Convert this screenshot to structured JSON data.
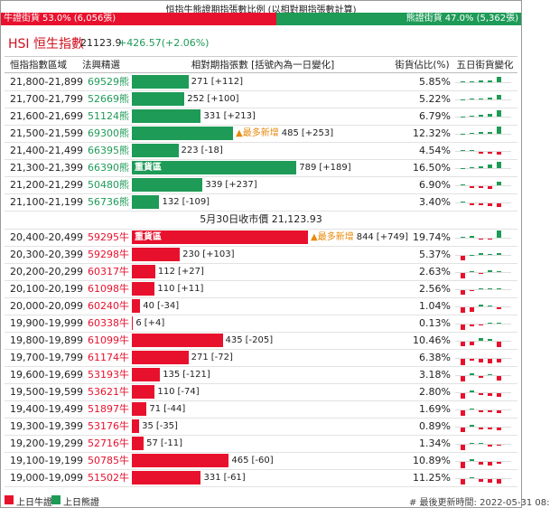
{
  "top": {
    "title": "恒指牛熊證期指張數比例 (以相對期指張數計算)",
    "bull": {
      "label": "牛證街貨",
      "pct": 53.0,
      "pct_label": "53.0%",
      "count": "(6,056張)"
    },
    "bear": {
      "label": "熊證街貨",
      "pct": 47.0,
      "pct_label": "47.0%",
      "count": "(5,362張)"
    }
  },
  "header": {
    "name": "HSI 恒生指數",
    "price": "21123.9",
    "change": "+426.57(+2.06%)"
  },
  "table": {
    "columns": [
      "恒指指數區域",
      "法興精選",
      "相對期指張數 [括號內為一日變化]",
      "街貨佔比(%)",
      "五日街貨變化"
    ],
    "bear_rows": [
      {
        "range": "21,800-21,899",
        "code": "69529熊",
        "count": 271,
        "change": "[+112]",
        "share": "5.85%",
        "five_day": [
          1,
          1,
          2,
          3,
          8
        ]
      },
      {
        "range": "21,700-21,799",
        "code": "52669熊",
        "count": 252,
        "change": "[+100]",
        "share": "5.22%",
        "five_day": [
          0,
          1,
          1,
          3,
          6
        ]
      },
      {
        "range": "21,600-21,699",
        "code": "51124熊",
        "count": 331,
        "change": "[+213]",
        "share": "6.79%",
        "five_day": [
          0,
          1,
          2,
          4,
          9
        ]
      },
      {
        "range": "21,500-21,599",
        "code": "69300熊",
        "count": 485,
        "change": "[+253]",
        "share": "12.32%",
        "most_added": "▲最多新增",
        "five_day": [
          0,
          1,
          2,
          3,
          10
        ]
      },
      {
        "range": "21,400-21,499",
        "code": "66395熊",
        "count": 223,
        "change": "[-18]",
        "share": "4.54%",
        "five_day": [
          1,
          1,
          -2,
          -3,
          -4
        ]
      },
      {
        "range": "21,300-21,399",
        "code": "66390熊",
        "count": 789,
        "change": "[+189]",
        "share": "16.50%",
        "heavy": "重貨區",
        "five_day": [
          0,
          1,
          3,
          5,
          9
        ]
      },
      {
        "range": "21,200-21,299",
        "code": "50480熊",
        "count": 339,
        "change": "[+237]",
        "share": "6.90%",
        "five_day": [
          1,
          -2,
          -3,
          -4,
          5
        ]
      },
      {
        "range": "21,100-21,199",
        "code": "56736熊",
        "count": 132,
        "change": "[-109]",
        "share": "3.40%",
        "five_day": [
          1,
          -2,
          -3,
          -4,
          -5
        ]
      }
    ],
    "separator": "5月30日收市價 21,123.93",
    "bull_rows": [
      {
        "range": "20,400-20,499",
        "code": "59295牛",
        "count": 844,
        "change": "[+749]",
        "share": "19.74%",
        "heavy": "重貨區",
        "most_added": "▲最多新增",
        "five_day": [
          1,
          2,
          -1,
          -1,
          10
        ]
      },
      {
        "range": "20,300-20,399",
        "code": "59298牛",
        "count": 230,
        "change": "[+103]",
        "share": "5.37%",
        "five_day": [
          -6,
          0,
          2,
          1,
          3
        ]
      },
      {
        "range": "20,200-20,299",
        "code": "60317牛",
        "count": 112,
        "change": "[+27]",
        "share": "2.63%",
        "five_day": [
          -7,
          1,
          -1,
          2,
          1
        ]
      },
      {
        "range": "20,100-20,199",
        "code": "61098牛",
        "count": 110,
        "change": "[+11]",
        "share": "2.56%",
        "five_day": [
          -6,
          -1,
          1,
          1,
          1
        ]
      },
      {
        "range": "20,000-20,099",
        "code": "60240牛",
        "count": 40,
        "change": "[-34]",
        "share": "1.04%",
        "five_day": [
          -7,
          -6,
          2,
          1,
          -3
        ]
      },
      {
        "range": "19,900-19,999",
        "code": "60338牛",
        "count": 6,
        "change": "[+4]",
        "share": "0.13%",
        "five_day": [
          -8,
          -2,
          -1,
          1,
          1
        ]
      },
      {
        "range": "19,800-19,899",
        "code": "61099牛",
        "count": 435,
        "change": "[-205]",
        "share": "10.46%",
        "five_day": [
          -6,
          -5,
          4,
          3,
          -8
        ]
      },
      {
        "range": "19,700-19,799",
        "code": "61174牛",
        "count": 271,
        "change": "[-72]",
        "share": "6.38%",
        "five_day": [
          -9,
          -3,
          -5,
          -6,
          -5
        ]
      },
      {
        "range": "19,600-19,699",
        "code": "53193牛",
        "count": 135,
        "change": "[-121]",
        "share": "3.18%",
        "five_day": [
          -7,
          2,
          -3,
          1,
          -6
        ]
      },
      {
        "range": "19,500-19,599",
        "code": "53621牛",
        "count": 110,
        "change": "[-74]",
        "share": "2.80%",
        "five_day": [
          -8,
          2,
          -2,
          -4,
          -5
        ]
      },
      {
        "range": "19,400-19,499",
        "code": "51897牛",
        "count": 71,
        "change": "[-44]",
        "share": "1.69%",
        "five_day": [
          -7,
          1,
          -2,
          -3,
          -4
        ]
      },
      {
        "range": "19,300-19,399",
        "code": "53176牛",
        "count": 35,
        "change": "[-35]",
        "share": "0.89%",
        "five_day": [
          -6,
          2,
          -2,
          -3,
          -4
        ]
      },
      {
        "range": "19,200-19,299",
        "code": "52716牛",
        "count": 57,
        "change": "[-11]",
        "share": "1.34%",
        "five_day": [
          -8,
          1,
          1,
          -2,
          -1
        ]
      },
      {
        "range": "19,100-19,199",
        "code": "50785牛",
        "count": 465,
        "change": "[-60]",
        "share": "10.89%",
        "five_day": [
          -9,
          2,
          -4,
          -5,
          -3
        ]
      },
      {
        "range": "19,000-19,099",
        "code": "51502牛",
        "count": 331,
        "change": "[-61]",
        "share": "11.25%",
        "five_day": [
          -8,
          1,
          -4,
          -5,
          -6
        ]
      }
    ]
  },
  "footer": {
    "bull": "上日牛證",
    "bear": "上日熊證",
    "updated": "# 最後更新時間: 2022-05-31 08:"
  }
}
